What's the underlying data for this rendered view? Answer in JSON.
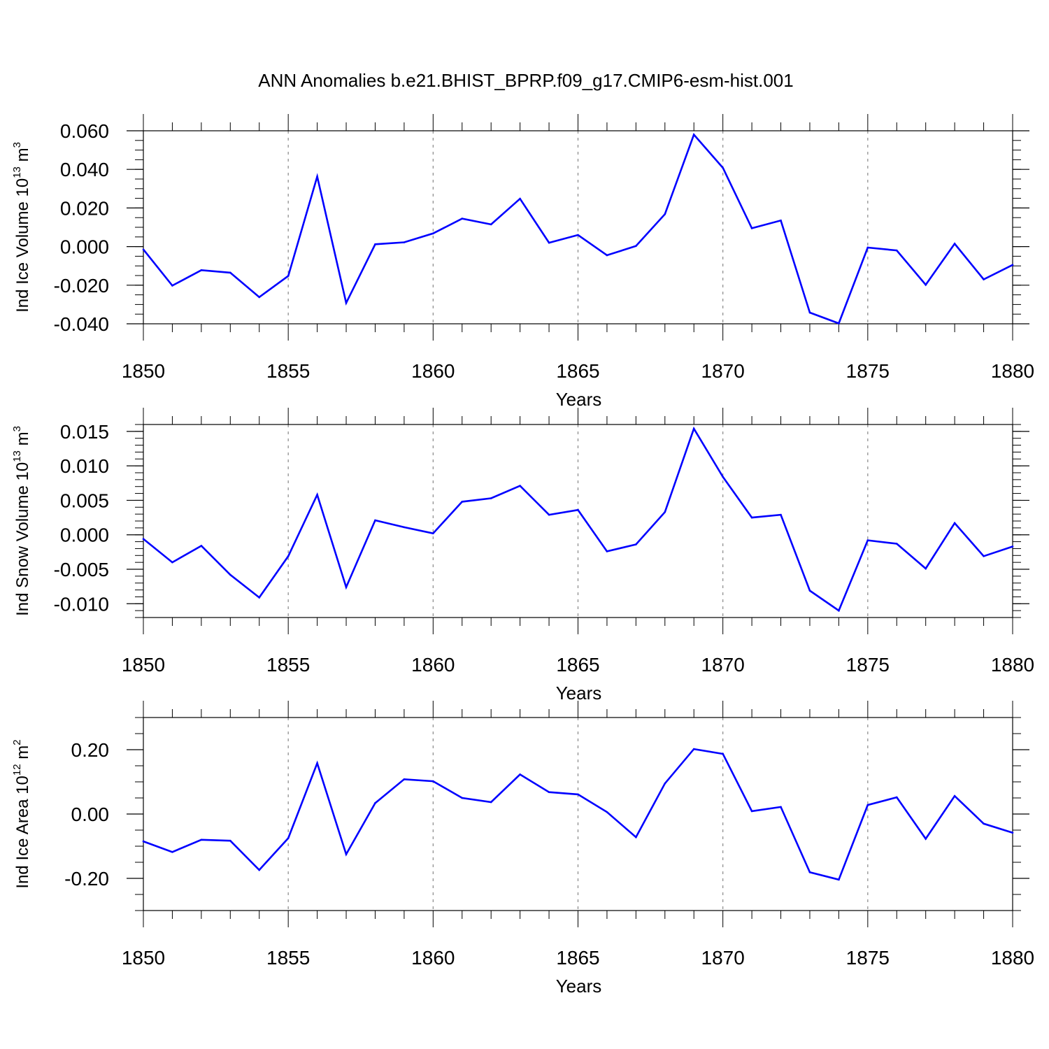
{
  "chart_data": {
    "type": "line",
    "title": "ANN Anomalies b.e21.BHIST_BPRP.f09_g17.CMIP6-esm-hist.001",
    "line_color": "#0000ff",
    "panels": [
      {
        "id": "ice-volume",
        "xlabel": "Years",
        "ylabel": {
          "prefix": "Ind Ice Volume 10",
          "exp": "13",
          "unit": " m",
          "unit_exp": "3"
        },
        "xlim": [
          1850,
          1880
        ],
        "ylim": [
          -0.04,
          0.06
        ],
        "xticks": [
          "1850",
          "1855",
          "1860",
          "1865",
          "1870",
          "1875",
          "1880"
        ],
        "yticks": [
          {
            "v": -0.04,
            "label": "-0.040"
          },
          {
            "v": -0.02,
            "label": "-0.020"
          },
          {
            "v": 0.0,
            "label": "0.000"
          },
          {
            "v": 0.02,
            "label": "0.020"
          },
          {
            "v": 0.04,
            "label": "0.040"
          },
          {
            "v": 0.06,
            "label": "0.060"
          }
        ],
        "minor_step": 0.005,
        "x": [
          1850,
          1851,
          1852,
          1853,
          1854,
          1855,
          1856,
          1857,
          1858,
          1859,
          1860,
          1861,
          1862,
          1863,
          1864,
          1865,
          1866,
          1867,
          1868,
          1869,
          1870,
          1871,
          1872,
          1873,
          1874,
          1875,
          1876,
          1877,
          1878,
          1879,
          1880
        ],
        "values": [
          -0.0015,
          -0.0202,
          -0.0122,
          -0.0135,
          -0.0262,
          -0.0152,
          0.0363,
          -0.0292,
          0.0012,
          0.0022,
          0.0068,
          0.0145,
          0.0115,
          0.0248,
          0.002,
          0.006,
          -0.0045,
          0.0003,
          0.0168,
          0.058,
          0.0408,
          0.0095,
          0.0135,
          -0.0342,
          -0.0398,
          -0.0005,
          -0.002,
          -0.0198,
          0.0015,
          -0.017,
          -0.0095
        ]
      },
      {
        "id": "snow-volume",
        "xlabel": "Years",
        "ylabel": {
          "prefix": "Ind Snow Volume 10",
          "exp": "13",
          "unit": " m",
          "unit_exp": "3"
        },
        "xlim": [
          1850,
          1880
        ],
        "ylim": [
          -0.012,
          0.016
        ],
        "xticks": [
          "1850",
          "1855",
          "1860",
          "1865",
          "1870",
          "1875",
          "1880"
        ],
        "yticks": [
          {
            "v": -0.01,
            "label": "-0.010"
          },
          {
            "v": -0.005,
            "label": "-0.005"
          },
          {
            "v": 0.0,
            "label": "0.000"
          },
          {
            "v": 0.005,
            "label": "0.005"
          },
          {
            "v": 0.01,
            "label": "0.010"
          },
          {
            "v": 0.015,
            "label": "0.015"
          }
        ],
        "minor_step": 0.001,
        "x": [
          1850,
          1851,
          1852,
          1853,
          1854,
          1855,
          1856,
          1857,
          1858,
          1859,
          1860,
          1861,
          1862,
          1863,
          1864,
          1865,
          1866,
          1867,
          1868,
          1869,
          1870,
          1871,
          1872,
          1873,
          1874,
          1875,
          1876,
          1877,
          1878,
          1879,
          1880
        ],
        "values": [
          -0.0006,
          -0.004,
          -0.0016,
          -0.0058,
          -0.0091,
          -0.0031,
          0.0058,
          -0.0076,
          0.0021,
          0.0011,
          0.0002,
          0.0048,
          0.0053,
          0.0071,
          0.0029,
          0.0036,
          -0.0024,
          -0.0014,
          0.0033,
          0.0154,
          0.0084,
          0.0025,
          0.0029,
          -0.0081,
          -0.011,
          -0.0008,
          -0.0013,
          -0.0049,
          0.0017,
          -0.0031,
          -0.0017
        ]
      },
      {
        "id": "ice-area",
        "xlabel": "Years",
        "ylabel": {
          "prefix": "Ind Ice Area 10",
          "exp": "12",
          "unit": " m",
          "unit_exp": "2"
        },
        "xlim": [
          1850,
          1880
        ],
        "ylim": [
          -0.3,
          0.3
        ],
        "xticks": [
          "1850",
          "1855",
          "1860",
          "1865",
          "1870",
          "1875",
          "1880"
        ],
        "yticks": [
          {
            "v": -0.2,
            "label": "-0.20"
          },
          {
            "v": 0.0,
            "label": "0.00"
          },
          {
            "v": 0.2,
            "label": "0.20"
          }
        ],
        "minor_step": 0.05,
        "x": [
          1850,
          1851,
          1852,
          1853,
          1854,
          1855,
          1856,
          1857,
          1858,
          1859,
          1860,
          1861,
          1862,
          1863,
          1864,
          1865,
          1866,
          1867,
          1868,
          1869,
          1870,
          1871,
          1872,
          1873,
          1874,
          1875,
          1876,
          1877,
          1878,
          1879,
          1880
        ],
        "values": [
          -0.085,
          -0.118,
          -0.08,
          -0.083,
          -0.174,
          -0.075,
          0.158,
          -0.125,
          0.034,
          0.108,
          0.102,
          0.05,
          0.037,
          0.123,
          0.068,
          0.061,
          0.006,
          -0.072,
          0.095,
          0.202,
          0.187,
          0.009,
          0.022,
          -0.181,
          -0.204,
          0.028,
          0.052,
          -0.077,
          0.056,
          -0.03,
          -0.058
        ]
      }
    ]
  }
}
